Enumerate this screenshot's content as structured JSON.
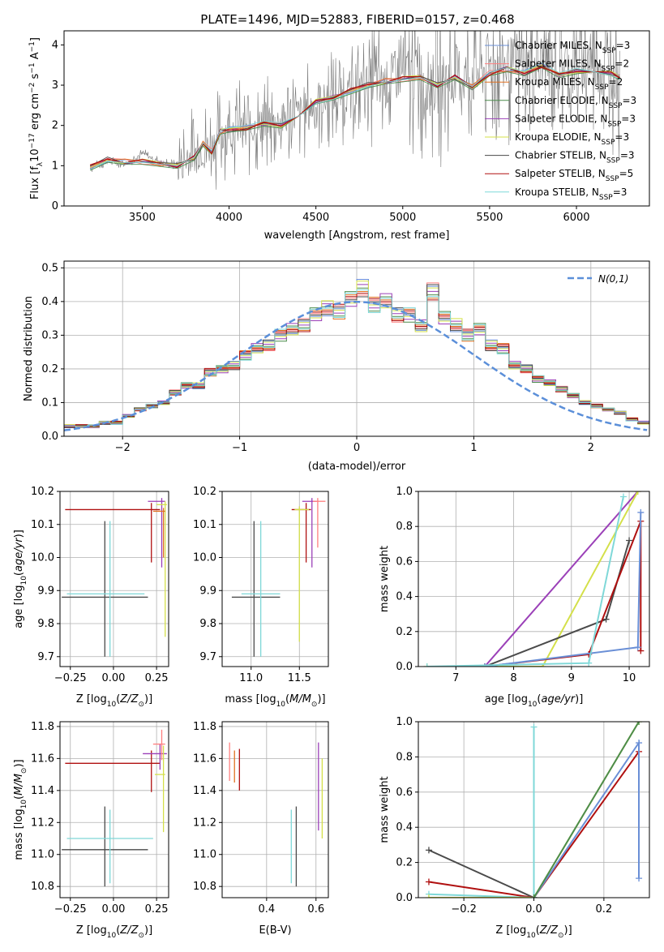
{
  "figure": {
    "title": "PLATE=1496, MJD=52883, FIBERID=0157, z=0.468"
  },
  "chart_data": [
    {
      "id": "spectrum",
      "type": "line",
      "title": "PLATE=1496, MJD=52883, FIBERID=0157, z=0.468",
      "xlabel": "wavelength [Angstrom, rest frame]",
      "ylabel": "Flux [f_λ 10^-17 erg cm^-2 s^-1 A^-1]",
      "xlim": [
        3050,
        6420
      ],
      "ylim": [
        0,
        4.35
      ],
      "xticks": [
        "3500",
        "4000",
        "4500",
        "5000",
        "5500",
        "6000"
      ],
      "yticks": [
        "0",
        "1",
        "2",
        "3",
        "4"
      ],
      "legend_placement": "top-right",
      "series": [
        {
          "name": "Chabrier MILES, N_SSP=3",
          "color": "#6a8fd6"
        },
        {
          "name": "Salpeter MILES, N_SSP=2",
          "color": "#ff7f7f"
        },
        {
          "name": "Kroupa MILES, N_SSP=2",
          "color": "#e07020"
        },
        {
          "name": "Chabrier ELODIE, N_SSP=3",
          "color": "#4c8c4c"
        },
        {
          "name": "Salpeter ELODIE, N_SSP=3",
          "color": "#9b40b8"
        },
        {
          "name": "Kroupa ELODIE, N_SSP=3",
          "color": "#d4e04a"
        },
        {
          "name": "Chabrier STELIB, N_SSP=3",
          "color": "#4a4a4a"
        },
        {
          "name": "Salpeter STELIB, N_SSP=5",
          "color": "#b01010"
        },
        {
          "name": "Kroupa STELIB, N_SSP=3",
          "color": "#7fd8d8"
        }
      ],
      "model_curve": {
        "x": [
          3200,
          3300,
          3400,
          3500,
          3600,
          3700,
          3800,
          3850,
          3900,
          3950,
          4000,
          4100,
          4200,
          4300,
          4400,
          4500,
          4600,
          4700,
          4800,
          4900,
          5000,
          5100,
          5200,
          5300,
          5400,
          5500,
          5600,
          5700,
          5800,
          5900,
          6000,
          6100,
          6200,
          6250
        ],
        "y": [
          0.95,
          1.15,
          1.1,
          1.1,
          1.05,
          1.0,
          1.2,
          1.55,
          1.35,
          1.85,
          1.9,
          1.95,
          2.05,
          2.0,
          2.3,
          2.6,
          2.7,
          2.85,
          3.0,
          3.1,
          3.15,
          3.2,
          3.0,
          3.2,
          2.95,
          3.3,
          3.4,
          3.3,
          3.5,
          3.25,
          3.35,
          3.4,
          3.3,
          3.2
        ]
      },
      "data_curve": {
        "x": [
          3200,
          3300,
          3400,
          3500,
          3600,
          3700,
          3800,
          3900,
          4000,
          4100,
          4200,
          4300,
          4400,
          4500,
          4600,
          4700,
          4800,
          4900,
          5000,
          5100,
          5200,
          5300,
          5400,
          5500,
          5600,
          5700,
          5800,
          5900,
          6000,
          6100,
          6200,
          6250
        ],
        "y": [
          0.95,
          1.1,
          1.05,
          1.3,
          1.1,
          1.0,
          1.3,
          1.5,
          2.0,
          1.9,
          2.0,
          2.1,
          2.3,
          2.5,
          2.7,
          2.8,
          3.1,
          3.0,
          3.3,
          3.2,
          3.0,
          3.3,
          3.2,
          3.5,
          3.5,
          3.4,
          3.6,
          3.5,
          3.4,
          3.6,
          3.4,
          3.1
        ]
      }
    },
    {
      "id": "residuals",
      "type": "bar",
      "xlabel": "(data-model)/error",
      "ylabel": "Normed distribution",
      "xlim": [
        -2.5,
        2.5
      ],
      "ylim": [
        0,
        0.52
      ],
      "xticks": [
        "−2",
        "−1",
        "0",
        "1",
        "2"
      ],
      "yticks": [
        "0.0",
        "0.1",
        "0.2",
        "0.3",
        "0.4",
        "0.5"
      ],
      "legend": "N(0,1)",
      "legend_placement": "top-right",
      "bin_width": 0.1,
      "bin_start": -2.5,
      "values": [
        0.03,
        0.03,
        0.03,
        0.04,
        0.04,
        0.06,
        0.08,
        0.09,
        0.1,
        0.13,
        0.15,
        0.15,
        0.19,
        0.2,
        0.21,
        0.24,
        0.26,
        0.27,
        0.3,
        0.32,
        0.33,
        0.36,
        0.38,
        0.37,
        0.41,
        0.44,
        0.39,
        0.4,
        0.36,
        0.36,
        0.33,
        0.43,
        0.35,
        0.33,
        0.3,
        0.32,
        0.27,
        0.26,
        0.21,
        0.2,
        0.17,
        0.16,
        0.14,
        0.12,
        0.1,
        0.09,
        0.08,
        0.07,
        0.05,
        0.04
      ],
      "gaussian": {
        "mean": 0,
        "sigma": 1
      }
    },
    {
      "id": "age_vs_Z",
      "type": "scatter",
      "xlabel": "Z [log10(Z/Z⊙)]",
      "ylabel": "age [log10(age/yr)]",
      "xlim": [
        -0.31,
        0.32
      ],
      "ylim": [
        9.67,
        10.2
      ],
      "xticks": [
        "−0.25",
        "0.00",
        "0.25"
      ],
      "yticks": [
        "9.7",
        "9.8",
        "9.9",
        "10.0",
        "10.1",
        "10.2"
      ],
      "points": [
        {
          "x": -0.05,
          "y": 9.88,
          "xerr": [
            0.25,
            0.25
          ],
          "yerr": [
            0.18,
            0.23
          ],
          "color": "#4a4a4a"
        },
        {
          "x": -0.02,
          "y": 9.89,
          "xerr": [
            0.25,
            0.2
          ],
          "yerr": [
            0.19,
            0.22
          ],
          "color": "#7fd8d8"
        },
        {
          "x": 0.22,
          "y": 10.145,
          "xerr": [
            0.5,
            0.05
          ],
          "yerr": [
            0.16,
            0.02
          ],
          "color": "#b01010"
        },
        {
          "x": 0.28,
          "y": 10.17,
          "xerr": [
            0.08,
            0.02
          ],
          "yerr": [
            0.2,
            0.01
          ],
          "color": "#9b40b8"
        },
        {
          "x": 0.3,
          "y": 10.16,
          "xerr": [
            0.05,
            0.01
          ],
          "yerr": [
            0.4,
            0.01
          ],
          "color": "#d4e04a"
        },
        {
          "x": 0.29,
          "y": 10.14,
          "xerr": [
            0.06,
            0.01
          ],
          "yerr": [
            0.14,
            0.01
          ],
          "color": "#e07020"
        }
      ]
    },
    {
      "id": "age_vs_mass",
      "type": "scatter",
      "xlabel": "mass [log10(M/M⊙)]",
      "ylabel": "",
      "xlim": [
        10.7,
        11.8
      ],
      "ylim": [
        9.67,
        10.2
      ],
      "xticks": [
        "11.0",
        "11.5"
      ],
      "yticks": [
        "9.7",
        "9.8",
        "9.9",
        "10.0",
        "10.1",
        "10.2"
      ],
      "points": [
        {
          "x": 11.03,
          "y": 9.88,
          "xerr": [
            0.23,
            0.27
          ],
          "yerr": [
            0.18,
            0.23
          ],
          "color": "#4a4a4a"
        },
        {
          "x": 11.1,
          "y": 9.89,
          "xerr": [
            0.2,
            0.2
          ],
          "yerr": [
            0.19,
            0.22
          ],
          "color": "#7fd8d8"
        },
        {
          "x": 11.57,
          "y": 10.145,
          "xerr": [
            0.15,
            0.05
          ],
          "yerr": [
            0.16,
            0.02
          ],
          "color": "#b01010"
        },
        {
          "x": 11.63,
          "y": 10.17,
          "xerr": [
            0.1,
            0.05
          ],
          "yerr": [
            0.2,
            0.01
          ],
          "color": "#9b40b8"
        },
        {
          "x": 11.5,
          "y": 10.145,
          "xerr": [
            0.05,
            0.1
          ],
          "yerr": [
            0.4,
            0.01
          ],
          "color": "#d4e04a"
        },
        {
          "x": 11.69,
          "y": 10.17,
          "xerr": [
            0.05,
            0.08
          ],
          "yerr": [
            0.14,
            0.01
          ],
          "color": "#ff7f7f"
        }
      ]
    },
    {
      "id": "massweight_vs_age",
      "type": "line",
      "xlabel": "age [log10(age/yr)]",
      "ylabel": "mass weight",
      "xlim": [
        6.35,
        10.35
      ],
      "ylim": [
        0,
        1
      ],
      "xticks": [
        "7",
        "8",
        "9",
        "10"
      ],
      "yticks": [
        "0.0",
        "0.2",
        "0.4",
        "0.6",
        "0.8",
        "1.0"
      ],
      "series": [
        {
          "color": "#9b40b8",
          "x": [
            7.5,
            10.15
          ],
          "y": [
            0,
            1
          ]
        },
        {
          "color": "#d4e04a",
          "x": [
            6.5,
            8.5,
            10.15
          ],
          "y": [
            0,
            0,
            1
          ]
        },
        {
          "color": "#4a4a4a",
          "x": [
            7.5,
            9.6,
            10.0
          ],
          "y": [
            0,
            0.27,
            0.72
          ]
        },
        {
          "color": "#b01010",
          "x": [
            7.5,
            9.3,
            10.2,
            10.2
          ],
          "y": [
            0,
            0.07,
            0.83,
            0.09
          ]
        },
        {
          "color": "#6a8fd6",
          "x": [
            7.5,
            10.15,
            10.2
          ],
          "y": [
            0,
            0.11,
            0.88
          ]
        },
        {
          "color": "#7fd8d8",
          "x": [
            6.5,
            9.3,
            9.9
          ],
          "y": [
            0,
            0.02,
            0.97
          ]
        }
      ]
    },
    {
      "id": "mass_vs_Z",
      "type": "scatter",
      "xlabel": "Z [log10(Z/Z⊙)]",
      "ylabel": "mass [log10(M/M⊙)]",
      "xlim": [
        -0.31,
        0.32
      ],
      "ylim": [
        10.73,
        11.83
      ],
      "xticks": [
        "−0.25",
        "0.00",
        "0.25"
      ],
      "yticks": [
        "10.8",
        "11.0",
        "11.2",
        "11.4",
        "11.6",
        "11.8"
      ],
      "points": [
        {
          "x": -0.05,
          "y": 11.03,
          "xerr": [
            0.25,
            0.25
          ],
          "yerr": [
            0.23,
            0.27
          ],
          "color": "#4a4a4a"
        },
        {
          "x": -0.02,
          "y": 11.1,
          "xerr": [
            0.25,
            0.25
          ],
          "yerr": [
            0.28,
            0.18
          ],
          "color": "#7fd8d8"
        },
        {
          "x": 0.22,
          "y": 11.57,
          "xerr": [
            0.5,
            0.05
          ],
          "yerr": [
            0.18,
            0.08
          ],
          "color": "#b01010"
        },
        {
          "x": 0.27,
          "y": 11.63,
          "xerr": [
            0.1,
            0.04
          ],
          "yerr": [
            0.1,
            0.06
          ],
          "color": "#9b40b8"
        },
        {
          "x": 0.29,
          "y": 11.5,
          "xerr": [
            0.05,
            0.01
          ],
          "yerr": [
            0.36,
            0.18
          ],
          "color": "#d4e04a"
        },
        {
          "x": 0.28,
          "y": 11.69,
          "xerr": [
            0.05,
            0.02
          ],
          "yerr": [
            0.1,
            0.09
          ],
          "color": "#ff7f7f"
        }
      ]
    },
    {
      "id": "mass_vs_ebv",
      "type": "scatter",
      "xlabel": "E(B-V)",
      "ylabel": "",
      "xlim": [
        0.22,
        0.65
      ],
      "ylim": [
        10.73,
        11.83
      ],
      "xticks": [
        "0.4",
        "0.6"
      ],
      "yticks": [
        "10.8",
        "11.0",
        "11.2",
        "11.4",
        "11.6",
        "11.8"
      ],
      "points": [
        {
          "x": 0.25,
          "y": 11.6,
          "yerr": [
            0.14,
            0.1
          ],
          "color": "#ff7f7f"
        },
        {
          "x": 0.27,
          "y": 11.55,
          "yerr": [
            0.1,
            0.1
          ],
          "color": "#e07020"
        },
        {
          "x": 0.29,
          "y": 11.52,
          "yerr": [
            0.12,
            0.14
          ],
          "color": "#b01010"
        },
        {
          "x": 0.5,
          "y": 11.05,
          "yerr": [
            0.23,
            0.23
          ],
          "color": "#7fd8d8"
        },
        {
          "x": 0.52,
          "y": 11.03,
          "yerr": [
            0.23,
            0.27
          ],
          "color": "#4a4a4a"
        },
        {
          "x": 0.61,
          "y": 11.45,
          "yerr": [
            0.3,
            0.25
          ],
          "color": "#9b40b8"
        },
        {
          "x": 0.625,
          "y": 11.4,
          "yerr": [
            0.3,
            0.2
          ],
          "color": "#d4e04a"
        }
      ]
    },
    {
      "id": "massweight_vs_Z",
      "type": "line",
      "xlabel": "Z [log10(Z/Z⊙)]",
      "ylabel": "mass weight",
      "xlim": [
        -0.33,
        0.33
      ],
      "ylim": [
        0,
        1
      ],
      "xticks": [
        "−0.2",
        "0.0",
        "0.2"
      ],
      "yticks": [
        "0.0",
        "0.2",
        "0.4",
        "0.6",
        "0.8",
        "1.0"
      ],
      "series": [
        {
          "color": "#4a4a4a",
          "x": [
            -0.3,
            0.0
          ],
          "y": [
            0.27,
            0.0
          ]
        },
        {
          "color": "#b01010",
          "x": [
            -0.3,
            0.0,
            0.3
          ],
          "y": [
            0.09,
            0.0,
            0.83
          ]
        },
        {
          "color": "#7fd8d8",
          "x": [
            -0.3,
            0.0,
            0.0
          ],
          "y": [
            0.02,
            0.0,
            0.97
          ]
        },
        {
          "color": "#d4e04a",
          "x": [
            -0.3,
            0.0,
            0.3
          ],
          "y": [
            0.0,
            0.0,
            1.0
          ]
        },
        {
          "color": "#6a8fd6",
          "x": [
            0.0,
            0.3,
            0.3
          ],
          "y": [
            0.0,
            0.88,
            0.11
          ]
        },
        {
          "color": "#4c8c4c",
          "x": [
            0.0,
            0.3
          ],
          "y": [
            0.0,
            1.0
          ]
        }
      ]
    }
  ]
}
